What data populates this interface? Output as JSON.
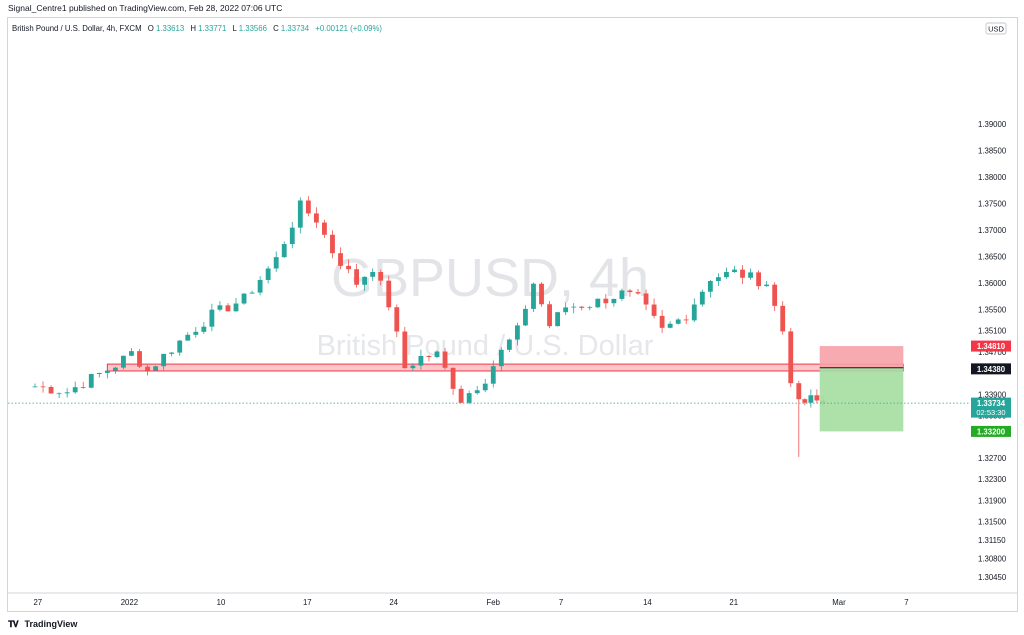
{
  "header": {
    "publisher_line": "Signal_Centre1 published on TradingView.com, Feb 28, 2022 07:06 UTC"
  },
  "footer": {
    "logo_text": "TradingView"
  },
  "chart_data": {
    "type": "candlestick",
    "symbol_line": {
      "name": "British Pound / U.S. Dollar, 4h, FXCM",
      "o_label": "O",
      "o": "1.33613",
      "h_label": "H",
      "h": "1.33771",
      "l_label": "L",
      "l": "1.33566",
      "c_label": "C",
      "c": "1.33734",
      "change": "+0.00121 (+0.09%)"
    },
    "watermark": {
      "ticker": "GBPUSD, 4h",
      "description": "British Pound / U.S. Dollar"
    },
    "currency": "USD",
    "ylim": [
      1.3017,
      1.41
    ],
    "y_ticks": [
      "1.39000",
      "1.38500",
      "1.38000",
      "1.37500",
      "1.37000",
      "1.36500",
      "1.36000",
      "1.35500",
      "1.35100",
      "1.34700",
      "1.34380",
      "1.33900",
      "1.33500",
      "1.33200",
      "1.32700",
      "1.32300",
      "1.31900",
      "1.31500",
      "1.31150",
      "1.30800",
      "1.30450"
    ],
    "x_ticks": [
      {
        "label": "27",
        "t": 0.35
      },
      {
        "label": "2022",
        "t": 11.74
      },
      {
        "label": "10",
        "t": 23.13
      },
      {
        "label": "17",
        "t": 33.87
      },
      {
        "label": "24",
        "t": 44.61
      },
      {
        "label": "Feb",
        "t": 57.0
      },
      {
        "label": "7",
        "t": 65.43
      },
      {
        "label": "14",
        "t": 76.17
      },
      {
        "label": "21",
        "t": 86.91
      },
      {
        "label": "Mar",
        "t": 100.0
      },
      {
        "label": "7",
        "t": 108.39
      }
    ],
    "price_labels": [
      {
        "value": "1.34810",
        "price": 1.3481,
        "color": "#f23645"
      },
      {
        "value": "1.34380",
        "price": 1.3438,
        "color": "#131722"
      },
      {
        "value": "1.33734",
        "price": 1.33734,
        "countdown": "02:53:30",
        "color": "#26a69a"
      },
      {
        "value": "1.33200",
        "price": 1.332,
        "color": "#22ab23"
      }
    ],
    "zone": {
      "price_top": 1.3447,
      "price_bottom": 1.3434,
      "t_start": 9.0,
      "t_end": 108.0,
      "color": "#f23645"
    },
    "position": {
      "t_start": 97.6,
      "t_end": 108.0,
      "stop": 1.3481,
      "entry": 1.344,
      "target": 1.332,
      "stop_color": "#f7a1a8",
      "target_color": "#a5dea1"
    },
    "current_price": 1.33734,
    "up_color": "#26a69a",
    "down_color": "#ef5350",
    "anchors": [
      [
        0,
        1.3405
      ],
      [
        4,
        1.3395
      ],
      [
        10,
        1.3445
      ],
      [
        12,
        1.3468
      ],
      [
        14,
        1.3435
      ],
      [
        18,
        1.349
      ],
      [
        22,
        1.354
      ],
      [
        26,
        1.357
      ],
      [
        30,
        1.3645
      ],
      [
        33,
        1.3745
      ],
      [
        35,
        1.372
      ],
      [
        37,
        1.366
      ],
      [
        40,
        1.36
      ],
      [
        42,
        1.363
      ],
      [
        44,
        1.356
      ],
      [
        46,
        1.344
      ],
      [
        48,
        1.346
      ],
      [
        50,
        1.3465
      ],
      [
        53,
        1.338
      ],
      [
        56,
        1.342
      ],
      [
        58,
        1.347
      ],
      [
        60,
        1.351
      ],
      [
        62,
        1.36
      ],
      [
        64,
        1.352
      ],
      [
        66,
        1.3555
      ],
      [
        69,
        1.356
      ],
      [
        73,
        1.358
      ],
      [
        75,
        1.357
      ],
      [
        78,
        1.351
      ],
      [
        81,
        1.354
      ],
      [
        84,
        1.361
      ],
      [
        87,
        1.362
      ],
      [
        91,
        1.36
      ],
      [
        93,
        1.351
      ],
      [
        94,
        1.342
      ],
      [
        95,
        1.337
      ],
      [
        96.5,
        1.338
      ],
      [
        98,
        1.3373
      ]
    ],
    "low_wick": {
      "t": 94.8,
      "price": 1.3272
    }
  }
}
